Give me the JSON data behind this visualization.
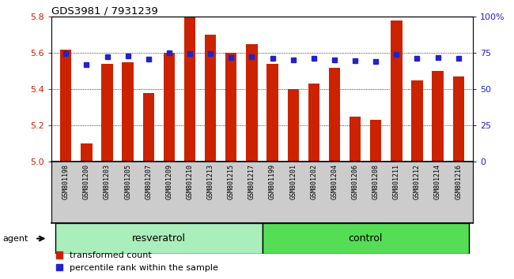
{
  "title": "GDS3981 / 7931239",
  "samples": [
    "GSM801198",
    "GSM801200",
    "GSM801203",
    "GSM801205",
    "GSM801207",
    "GSM801209",
    "GSM801210",
    "GSM801213",
    "GSM801215",
    "GSM801217",
    "GSM801199",
    "GSM801201",
    "GSM801202",
    "GSM801204",
    "GSM801206",
    "GSM801208",
    "GSM801211",
    "GSM801212",
    "GSM801214",
    "GSM801216"
  ],
  "bar_values": [
    5.62,
    5.1,
    5.54,
    5.55,
    5.38,
    5.6,
    5.8,
    5.7,
    5.6,
    5.65,
    5.54,
    5.4,
    5.43,
    5.52,
    5.25,
    5.23,
    5.78,
    5.45,
    5.5,
    5.47
  ],
  "percentile_values": [
    5.597,
    5.535,
    5.578,
    5.582,
    5.567,
    5.6,
    5.598,
    5.598,
    5.577,
    5.579,
    5.572,
    5.564,
    5.569,
    5.562,
    5.557,
    5.555,
    5.592,
    5.572,
    5.574,
    5.57
  ],
  "bar_color": "#cc2200",
  "percentile_color": "#2222cc",
  "ylim": [
    5.0,
    5.8
  ],
  "yticks": [
    5.0,
    5.2,
    5.4,
    5.6,
    5.8
  ],
  "right_ytick_pcts": [
    0,
    25,
    50,
    75,
    100
  ],
  "right_ylabels": [
    "0",
    "25",
    "50",
    "75",
    "100%"
  ],
  "legend_items": [
    "transformed count",
    "percentile rank within the sample"
  ],
  "group_labels": [
    "resveratrol",
    "control"
  ],
  "group_colors": [
    "#aaeebb",
    "#66dd66"
  ],
  "resveratrol_count": 10,
  "control_count": 10
}
